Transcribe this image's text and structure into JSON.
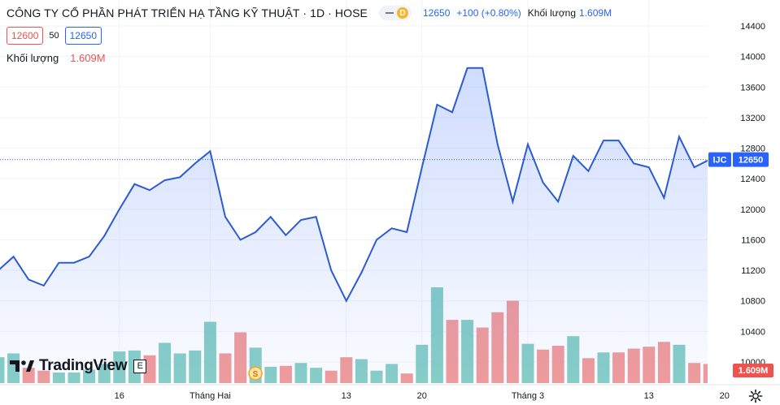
{
  "header": {
    "title": "CÔNG TY CỔ PHẦN PHÁT TRIỂN HẠ TẦNG KỸ THUẬT · 1D · HOSE",
    "interval_badge": "D",
    "last_price": "12650",
    "change": "+100 (+0.80%)",
    "volume_label": "Khối lượng",
    "volume_value": "1.609M"
  },
  "quote": {
    "bid": "12600",
    "spread": "50",
    "ask": "12650"
  },
  "volume_legend": {
    "label": "Khối lượng",
    "value": "1.609M"
  },
  "price_tag": {
    "symbol": "IJC",
    "price": "12650"
  },
  "volume_tag": "1.609M",
  "brand": {
    "name": "TradingView",
    "e_badge": "E",
    "dividend_badge": "S"
  },
  "colors": {
    "line": "#2d5bd0",
    "up": "#88cec6",
    "down": "#f19c9a",
    "accent": "#2962ff"
  },
  "chart_data": {
    "type": "area",
    "price_axis_ticks": [
      10000,
      10400,
      10800,
      11200,
      11600,
      12000,
      12400,
      12800,
      13200,
      13600,
      14000,
      14400
    ],
    "ylim": [
      9900,
      14500
    ],
    "time_axis_ticks": [
      {
        "i": 8,
        "label": "16"
      },
      {
        "i": 14,
        "label": "Tháng Hai"
      },
      {
        "i": 23,
        "label": "13"
      },
      {
        "i": 28,
        "label": "20"
      },
      {
        "i": 35,
        "label": "Tháng 3"
      },
      {
        "i": 43,
        "label": "13"
      },
      {
        "i": 48,
        "label": "20"
      }
    ],
    "close": [
      11200,
      11380,
      11080,
      11000,
      11300,
      11300,
      11380,
      11650,
      12000,
      12330,
      12250,
      12380,
      12420,
      12600,
      12760,
      11900,
      11600,
      11700,
      11900,
      11660,
      11860,
      11900,
      11200,
      10800,
      11170,
      11600,
      11750,
      11700,
      12550,
      13370,
      13270,
      13850,
      13850,
      12850,
      12100,
      12850,
      12350,
      12100,
      12700,
      12500,
      12900,
      12900,
      12600,
      12550,
      12150,
      12950,
      12550,
      12650
    ],
    "volume_rel": [
      0.27,
      0.31,
      0.16,
      0.13,
      0.11,
      0.11,
      0.14,
      0.2,
      0.33,
      0.34,
      0.29,
      0.42,
      0.31,
      0.34,
      0.64,
      0.31,
      0.53,
      0.37,
      0.17,
      0.18,
      0.21,
      0.16,
      0.13,
      0.27,
      0.25,
      0.13,
      0.2,
      0.1,
      0.4,
      1.0,
      0.66,
      0.66,
      0.58,
      0.74,
      0.86,
      0.41,
      0.35,
      0.39,
      0.49,
      0.26,
      0.32,
      0.32,
      0.36,
      0.38,
      0.43,
      0.4,
      0.21,
      0.2
    ],
    "volume_up": [
      true,
      true,
      false,
      false,
      true,
      true,
      true,
      true,
      true,
      true,
      false,
      true,
      true,
      true,
      true,
      false,
      false,
      true,
      true,
      false,
      true,
      true,
      false,
      false,
      true,
      true,
      true,
      false,
      true,
      true,
      false,
      true,
      false,
      false,
      false,
      true,
      false,
      false,
      true,
      false,
      true,
      false,
      false,
      false,
      false,
      true,
      false,
      false
    ]
  }
}
